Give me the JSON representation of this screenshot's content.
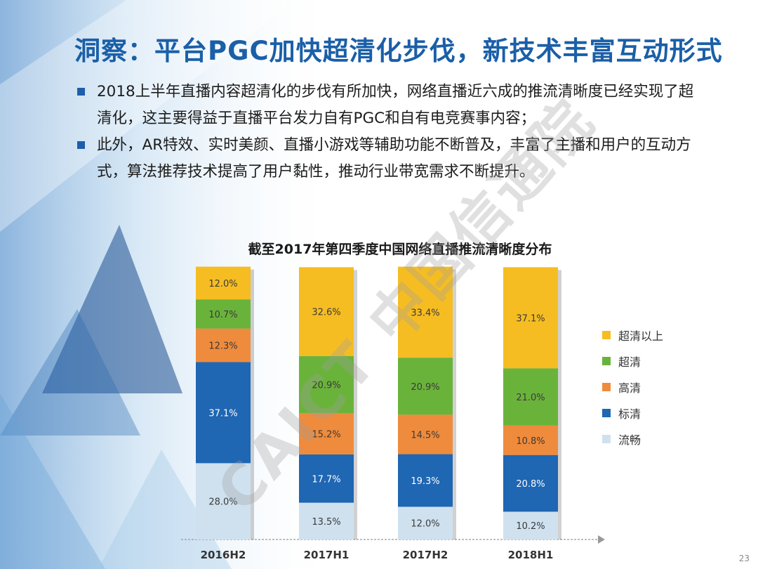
{
  "slide": {
    "title": "洞察：平台PGC加快超清化步伐，新技术丰富互动形式",
    "bullets": [
      "2018上半年直播内容超清化的步伐有所加快，网络直播近六成的推流清晰度已经实现了超清化，这主要得益于直播平台发力自有PGC和自有电竞赛事内容；",
      "此外，AR特效、实时美颜、直播小游戏等辅助功能不断普及，丰富了主播和用户的互动方式，算法推荐技术提高了用户黏性，推动行业带宽需求不断提升。"
    ],
    "watermark": "CAICT 中国信通院",
    "page_number": "23"
  },
  "chart_data": {
    "type": "bar",
    "stacked": true,
    "title": "截至2017年第四季度中国网络直播推流清晰度分布",
    "categories": [
      "2016H2",
      "2017H1",
      "2017H2",
      "2018H1"
    ],
    "series": [
      {
        "name": "流畅",
        "color": "#cfe1ef",
        "values": [
          28.0,
          13.5,
          12.0,
          10.2
        ]
      },
      {
        "name": "标清",
        "color": "#1f66b3",
        "values": [
          37.1,
          17.7,
          19.3,
          20.8
        ]
      },
      {
        "name": "高清",
        "color": "#ef8b3c",
        "values": [
          12.3,
          15.2,
          14.5,
          10.8
        ]
      },
      {
        "name": "超清",
        "color": "#6ab33b",
        "values": [
          10.7,
          20.9,
          20.9,
          21.0
        ]
      },
      {
        "name": "超清以上",
        "color": "#f6bd22",
        "values": [
          12.0,
          32.6,
          33.4,
          37.1
        ]
      }
    ],
    "legend_order": [
      "超清以上",
      "超清",
      "高清",
      "标清",
      "流畅"
    ],
    "ylim": [
      0,
      100
    ],
    "legend_position": "right"
  }
}
